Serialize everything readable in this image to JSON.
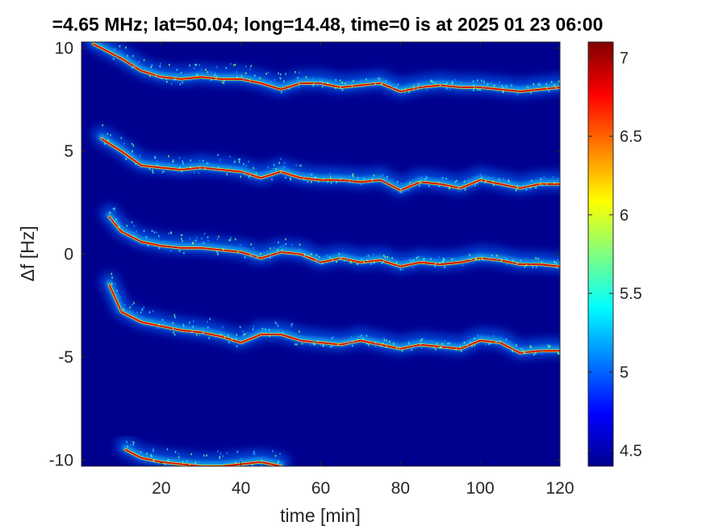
{
  "chart_data": {
    "type": "heatmap",
    "title": "=4.65 MHz;  lat=50.04; long=14.48, time=0 is at 2025 01 23 06:00",
    "xlabel": "time [min]",
    "ylabel": "Δf [Hz]",
    "xlim": [
      0,
      120
    ],
    "ylim": [
      -10.3,
      10.3
    ],
    "xticks": [
      20,
      40,
      60,
      80,
      100,
      120
    ],
    "xtick_labels": [
      "20",
      "40",
      "60",
      "80",
      "100",
      "120"
    ],
    "yticks": [
      10,
      5,
      0,
      -5,
      -10
    ],
    "ytick_labels": [
      "10",
      "5",
      "0",
      "-5",
      "-10"
    ],
    "colorbar": {
      "colormap": "jet",
      "range": [
        4.4,
        7.1
      ],
      "ticks": [
        7,
        6.5,
        6,
        5.5,
        5,
        4.5
      ],
      "tick_labels": [
        "7",
        "6.5",
        "6",
        "5.5",
        "5",
        "4.5"
      ]
    },
    "background_color": "#00008f",
    "series": [
      {
        "x": [
          3,
          10,
          15,
          20,
          25,
          30,
          35,
          40,
          45,
          50,
          55,
          60,
          65,
          70,
          75,
          80,
          85,
          90,
          95,
          100,
          105,
          110,
          115,
          120
        ],
        "y": [
          10.2,
          9.5,
          8.9,
          8.6,
          8.5,
          8.6,
          8.5,
          8.5,
          8.3,
          8.0,
          8.3,
          8.3,
          8.1,
          8.2,
          8.3,
          7.9,
          8.1,
          8.2,
          8.1,
          8.1,
          8.0,
          7.9,
          8.0,
          8.1
        ]
      },
      {
        "x": [
          5,
          10,
          15,
          20,
          25,
          30,
          35,
          40,
          45,
          50,
          55,
          60,
          65,
          70,
          75,
          80,
          85,
          90,
          95,
          100,
          105,
          110,
          115,
          120
        ],
        "y": [
          5.6,
          5.0,
          4.3,
          4.2,
          4.1,
          4.2,
          4.1,
          4.0,
          3.7,
          4.0,
          3.7,
          3.6,
          3.6,
          3.5,
          3.6,
          3.1,
          3.5,
          3.4,
          3.2,
          3.6,
          3.4,
          3.2,
          3.4,
          3.4
        ]
      },
      {
        "x": [
          7,
          10,
          15,
          20,
          25,
          30,
          35,
          40,
          45,
          50,
          55,
          60,
          65,
          70,
          75,
          80,
          85,
          90,
          95,
          100,
          105,
          110,
          115,
          120
        ],
        "y": [
          1.8,
          1.1,
          0.6,
          0.4,
          0.3,
          0.3,
          0.2,
          0.1,
          -0.2,
          0.1,
          0.0,
          -0.4,
          -0.2,
          -0.4,
          -0.3,
          -0.6,
          -0.4,
          -0.5,
          -0.4,
          -0.2,
          -0.3,
          -0.5,
          -0.5,
          -0.6
        ]
      },
      {
        "x": [
          7,
          10,
          15,
          20,
          25,
          30,
          35,
          40,
          45,
          50,
          55,
          60,
          65,
          70,
          75,
          80,
          85,
          90,
          95,
          100,
          105,
          110,
          115,
          120
        ],
        "y": [
          -1.5,
          -2.8,
          -3.3,
          -3.5,
          -3.7,
          -3.8,
          -4.0,
          -4.3,
          -3.9,
          -3.9,
          -4.2,
          -4.3,
          -4.4,
          -4.2,
          -4.4,
          -4.6,
          -4.4,
          -4.5,
          -4.6,
          -4.2,
          -4.3,
          -4.8,
          -4.7,
          -4.7
        ]
      },
      {
        "x": [
          11,
          15,
          20,
          25,
          30,
          35,
          40,
          45,
          50
        ],
        "y": [
          -9.5,
          -9.9,
          -10.1,
          -10.2,
          -10.3,
          -10.3,
          -10.2,
          -10.1,
          -10.3
        ]
      }
    ]
  }
}
